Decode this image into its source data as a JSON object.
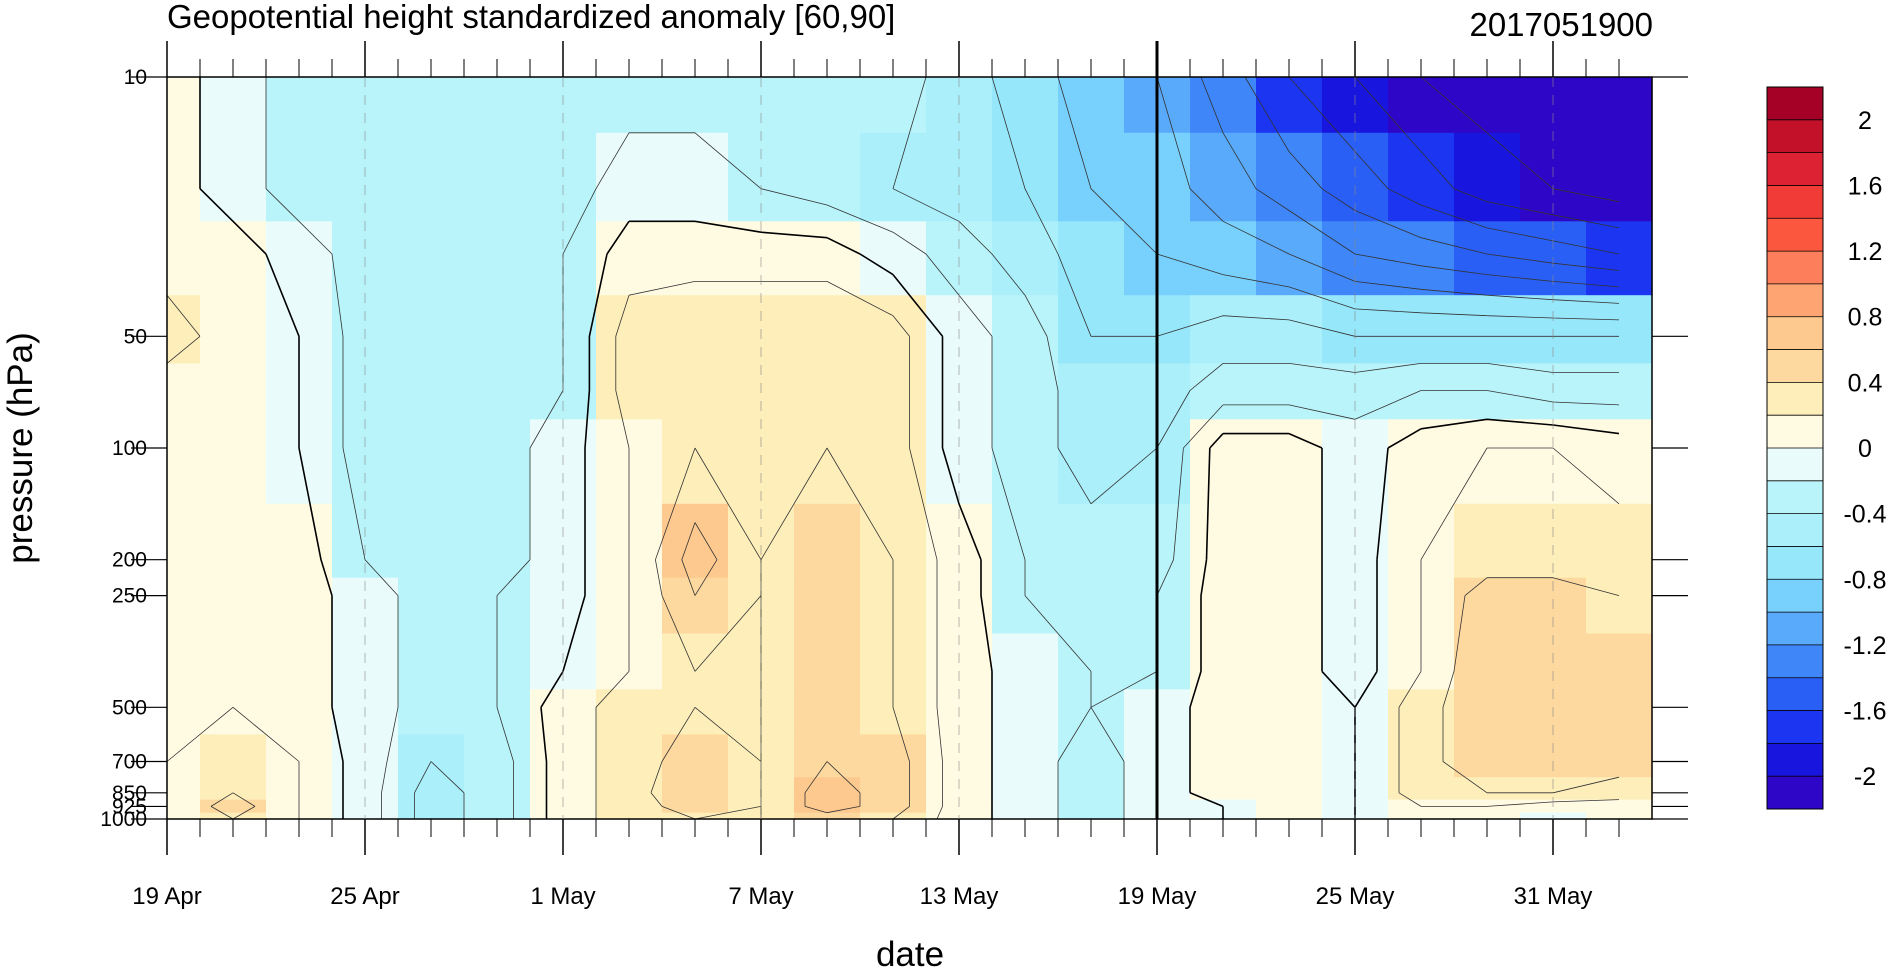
{
  "chart_data": {
    "type": "heatmap",
    "title": "Geopotential height standardized anomaly [60,90]",
    "subtitle": "2017051900",
    "xlabel": "date",
    "ylabel": "pressure (hPa)",
    "y_scale": "log",
    "y_reversed": true,
    "x_range": [
      "2017-04-19",
      "2017-06-03"
    ],
    "y_range": [
      1000,
      10
    ],
    "x_tick_labels": [
      "19 Apr",
      "25 Apr",
      "1 May",
      "7 May",
      "13 May",
      "19 May",
      "25 May",
      "31 May"
    ],
    "y_tick_values": [
      10,
      50,
      100,
      200,
      250,
      500,
      700,
      850,
      925,
      1000
    ],
    "y_tick_labels": [
      "10",
      "50",
      "100",
      "200",
      "250",
      "500",
      "700",
      "850",
      "925",
      "1000"
    ],
    "current_date_marker": "19 May",
    "x_values": [
      "19 Apr",
      "21 Apr",
      "23 Apr",
      "25 Apr",
      "27 Apr",
      "29 Apr",
      "1 May",
      "3 May",
      "5 May",
      "7 May",
      "9 May",
      "11 May",
      "13 May",
      "15 May",
      "17 May",
      "19 May",
      "21 May",
      "23 May",
      "25 May",
      "27 May",
      "29 May",
      "31 May",
      "2 Jun"
    ],
    "y_values": [
      10,
      20,
      30,
      50,
      70,
      100,
      200,
      250,
      400,
      500,
      700,
      850,
      925,
      1000
    ],
    "z_values": [
      [
        0.1,
        -0.1,
        -0.3,
        -0.3,
        -0.3,
        -0.3,
        -0.3,
        -0.3,
        -0.3,
        -0.3,
        -0.3,
        -0.3,
        -0.5,
        -0.7,
        -0.9,
        -1.0,
        -1.3,
        -1.6,
        -1.8,
        -2.0,
        -2.1,
        -2.2,
        -2.2
      ],
      [
        0.1,
        -0.1,
        -0.3,
        -0.3,
        -0.3,
        -0.3,
        -0.3,
        -0.1,
        -0.1,
        -0.2,
        -0.3,
        -0.4,
        -0.5,
        -0.6,
        -0.8,
        -0.9,
        -1.1,
        -1.3,
        -1.5,
        -1.7,
        -1.9,
        -2.0,
        -2.1
      ],
      [
        0.1,
        0.1,
        -0.1,
        -0.3,
        -0.3,
        -0.3,
        -0.2,
        0.1,
        0.1,
        0.1,
        0.1,
        -0.1,
        -0.3,
        -0.5,
        -0.7,
        -0.8,
        -0.9,
        -1.0,
        -1.2,
        -1.3,
        -1.4,
        -1.5,
        -1.6
      ],
      [
        0.3,
        0.1,
        0.0,
        -0.3,
        -0.3,
        -0.3,
        -0.2,
        0.3,
        0.4,
        0.4,
        0.4,
        0.3,
        -0.1,
        -0.3,
        -0.6,
        -0.6,
        -0.5,
        -0.5,
        -0.6,
        -0.6,
        -0.6,
        -0.6,
        -0.6
      ],
      [
        0.1,
        0.1,
        0.0,
        -0.3,
        -0.3,
        -0.3,
        -0.2,
        0.3,
        0.4,
        0.4,
        0.4,
        0.3,
        -0.1,
        -0.3,
        -0.5,
        -0.5,
        -0.3,
        -0.3,
        -0.3,
        -0.2,
        -0.2,
        -0.3,
        -0.3
      ],
      [
        0.1,
        0.1,
        0.0,
        -0.3,
        -0.3,
        -0.3,
        -0.1,
        0.2,
        0.4,
        0.4,
        0.4,
        0.3,
        -0.1,
        -0.3,
        -0.5,
        -0.4,
        0.1,
        0.1,
        -0.1,
        0.1,
        0.2,
        0.2,
        0.1
      ],
      [
        0.1,
        0.1,
        0.1,
        -0.2,
        -0.3,
        -0.3,
        -0.1,
        0.2,
        0.7,
        0.4,
        0.5,
        0.4,
        0.1,
        -0.2,
        -0.3,
        -0.3,
        0.1,
        0.1,
        -0.1,
        0.2,
        0.3,
        0.3,
        0.3
      ],
      [
        0.1,
        0.1,
        0.1,
        -0.1,
        -0.3,
        -0.2,
        -0.1,
        0.2,
        0.6,
        0.4,
        0.6,
        0.4,
        0.1,
        -0.2,
        -0.3,
        -0.2,
        0.1,
        0.1,
        -0.1,
        0.2,
        0.5,
        0.5,
        0.4
      ],
      [
        0.1,
        0.1,
        0.1,
        -0.1,
        -0.3,
        -0.2,
        0.0,
        0.2,
        0.4,
        0.4,
        0.6,
        0.4,
        0.1,
        -0.1,
        -0.2,
        -0.2,
        0.1,
        0.1,
        -0.1,
        0.2,
        0.6,
        0.6,
        0.5
      ],
      [
        0.1,
        0.2,
        0.1,
        -0.1,
        -0.3,
        -0.2,
        0.1,
        0.3,
        0.4,
        0.4,
        0.6,
        0.4,
        0.1,
        -0.1,
        -0.2,
        -0.1,
        0.1,
        0.1,
        0.0,
        0.3,
        0.6,
        0.6,
        0.6
      ],
      [
        0.2,
        0.3,
        0.2,
        -0.1,
        -0.4,
        -0.3,
        0.1,
        0.3,
        0.5,
        0.4,
        0.6,
        0.5,
        0.1,
        -0.1,
        -0.3,
        -0.1,
        0.1,
        0.1,
        0.0,
        0.3,
        0.6,
        0.6,
        0.5
      ],
      [
        0.2,
        0.4,
        0.2,
        -0.1,
        -0.5,
        -0.3,
        0.1,
        0.3,
        0.6,
        0.4,
        0.7,
        0.5,
        0.1,
        -0.1,
        -0.3,
        -0.1,
        0.1,
        0.1,
        0.0,
        0.3,
        0.4,
        0.4,
        0.3
      ],
      [
        0.2,
        0.5,
        0.2,
        -0.1,
        -0.5,
        -0.3,
        0.1,
        0.3,
        0.5,
        0.4,
        0.7,
        0.5,
        0.1,
        -0.1,
        -0.3,
        -0.1,
        0.0,
        0.1,
        0.0,
        0.2,
        0.2,
        0.1,
        0.1
      ],
      [
        0.2,
        0.4,
        0.2,
        -0.1,
        -0.5,
        -0.3,
        0.1,
        0.3,
        0.4,
        0.4,
        0.5,
        0.4,
        0.1,
        -0.1,
        -0.3,
        -0.1,
        0.0,
        0.1,
        0.0,
        0.1,
        0.1,
        0.0,
        0.1
      ]
    ],
    "colorbar": {
      "labels": [
        "2",
        "1.6",
        "1.2",
        "0.8",
        "0.4",
        "0",
        "-0.4",
        "-0.8",
        "-1.2",
        "-1.6",
        "-2"
      ],
      "levels": [
        2.2,
        2.0,
        1.8,
        1.6,
        1.4,
        1.2,
        1.0,
        0.8,
        0.6,
        0.4,
        0.2,
        0.0,
        -0.2,
        -0.4,
        -0.6,
        -0.8,
        -1.0,
        -1.2,
        -1.4,
        -1.6,
        -1.8,
        -2.0,
        -2.2
      ],
      "colors": [
        "#a50026",
        "#c3112a",
        "#dd2233",
        "#f03b36",
        "#fb573f",
        "#fd7e5a",
        "#fda472",
        "#fdc98f",
        "#fdd9a0",
        "#fdeeba",
        "#fffbe3",
        "#e9fcfb",
        "#baf4fb",
        "#aaeffa",
        "#97e7fb",
        "#78d1fd",
        "#5aaafb",
        "#3f86f8",
        "#2a5ff6",
        "#1b35f1",
        "#1815df",
        "#2e06c8"
      ]
    }
  }
}
